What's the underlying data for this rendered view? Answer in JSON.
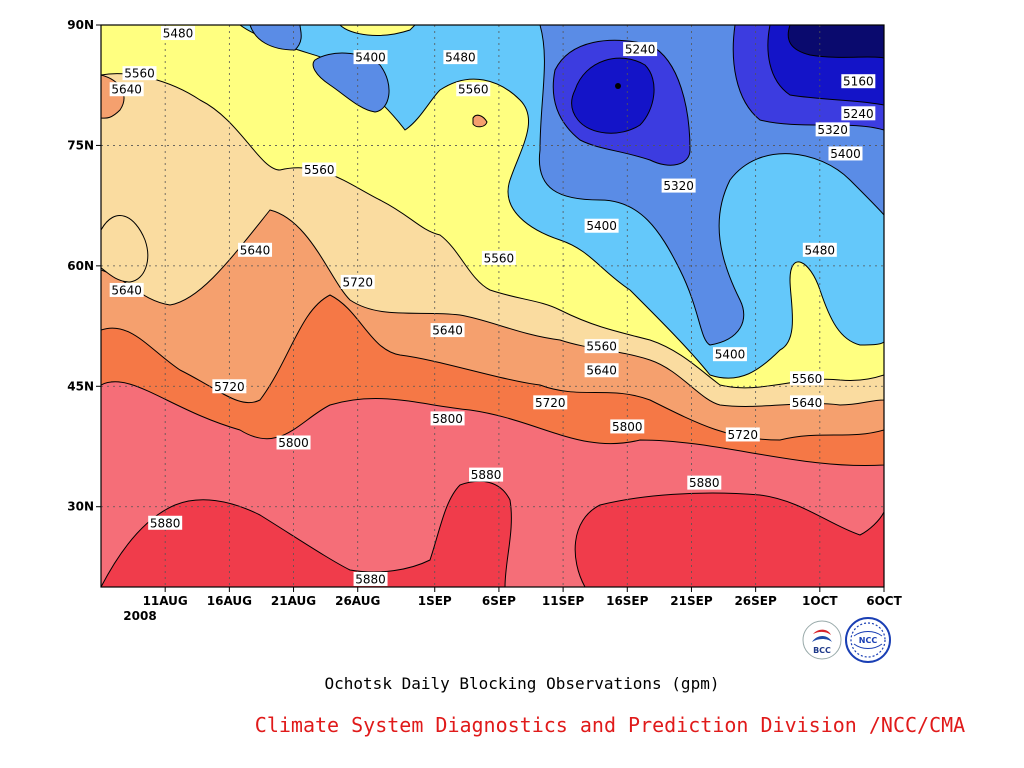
{
  "chart_data": {
    "type": "heatmap",
    "subtype": "filled-contour",
    "title": "Ochotsk Daily Blocking Observations (gpm)",
    "credit": "Climate System Diagnostics and Prediction Division /NCC/CMA",
    "x_axis": {
      "ticks": [
        "11AUG",
        "16AUG",
        "21AUG",
        "26AUG",
        "1SEP",
        "6SEP",
        "11SEP",
        "16SEP",
        "21SEP",
        "26SEP",
        "1OCT",
        "6OCT"
      ],
      "year_label": "2008"
    },
    "y_axis": {
      "ticks": [
        "30N",
        "45N",
        "60N",
        "75N",
        "90N"
      ],
      "range": [
        20,
        90
      ]
    },
    "grid": true,
    "contour_levels": [
      5160,
      5240,
      5320,
      5400,
      5480,
      5560,
      5640,
      5720,
      5800,
      5880
    ],
    "colors": {
      "lt5160": "#0a0a6e",
      "5160": "#1414c8",
      "5240": "#3c3ce0",
      "5320": "#5a8ce6",
      "5400": "#64c8fa",
      "5480": "#ffff80",
      "5560": "#fadca0",
      "5640": "#f5a06e",
      "5720": "#f57846",
      "5800": "#f56e78",
      "5880": "#f03c4b"
    },
    "contour_labels": [
      {
        "value": "5480",
        "x": "12AUG",
        "y": 89
      },
      {
        "value": "5400",
        "x": "27AUG",
        "y": 86
      },
      {
        "value": "5480",
        "x": "3SEP",
        "y": 86
      },
      {
        "value": "5240",
        "x": "17SEP",
        "y": 87
      },
      {
        "value": "5560",
        "x": "9AUG",
        "y": 84
      },
      {
        "value": "5560",
        "x": "4SEP",
        "y": 82
      },
      {
        "value": "5160",
        "x": "4OCT",
        "y": 83
      },
      {
        "value": "5640",
        "x": "8AUG",
        "y": 82
      },
      {
        "value": "5240",
        "x": "4OCT",
        "y": 79
      },
      {
        "value": "5320",
        "x": "2OCT",
        "y": 77
      },
      {
        "value": "5400",
        "x": "3OCT",
        "y": 74
      },
      {
        "value": "5560",
        "x": "23AUG",
        "y": 72
      },
      {
        "value": "5320",
        "x": "20SEP",
        "y": 70
      },
      {
        "value": "5400",
        "x": "14SEP",
        "y": 65
      },
      {
        "value": "5640",
        "x": "18AUG",
        "y": 62
      },
      {
        "value": "5480",
        "x": "1OCT",
        "y": 62
      },
      {
        "value": "5560",
        "x": "6SEP",
        "y": 61
      },
      {
        "value": "5640",
        "x": "8AUG",
        "y": 57
      },
      {
        "value": "5720",
        "x": "26AUG",
        "y": 58
      },
      {
        "value": "5640",
        "x": "2SEP",
        "y": 52
      },
      {
        "value": "5560",
        "x": "14SEP",
        "y": 50
      },
      {
        "value": "5400",
        "x": "24SEP",
        "y": 49
      },
      {
        "value": "5640",
        "x": "14SEP",
        "y": 47
      },
      {
        "value": "5560",
        "x": "30SEP",
        "y": 46
      },
      {
        "value": "5720",
        "x": "16AUG",
        "y": 45
      },
      {
        "value": "5720",
        "x": "10SEP",
        "y": 43
      },
      {
        "value": "5640",
        "x": "30SEP",
        "y": 43
      },
      {
        "value": "5800",
        "x": "2SEP",
        "y": 41
      },
      {
        "value": "5800",
        "x": "16SEP",
        "y": 40
      },
      {
        "value": "5720",
        "x": "25SEP",
        "y": 39
      },
      {
        "value": "5800",
        "x": "21AUG",
        "y": 38
      },
      {
        "value": "5880",
        "x": "5SEP",
        "y": 34
      },
      {
        "value": "5880",
        "x": "22SEP",
        "y": 33
      },
      {
        "value": "5880",
        "x": "11AUG",
        "y": 28
      },
      {
        "value": "5880",
        "x": "27AUG",
        "y": 21
      }
    ],
    "logos": [
      {
        "name": "BCC"
      },
      {
        "name": "NCC"
      }
    ]
  }
}
